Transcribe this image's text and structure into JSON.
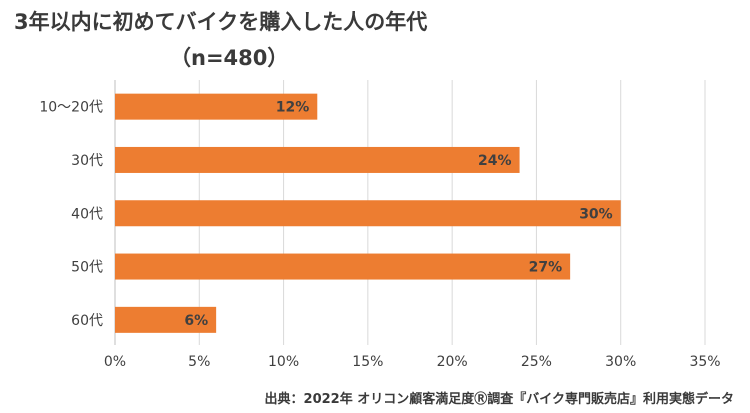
{
  "title": "3年以内に初めてバイクを購入した人の年代",
  "subtitle": "（n=480）",
  "source": "出典：2022年 オリコン顧客満足度Ⓡ調査『バイク専門販売店』利用実態データ",
  "colors": {
    "bar": "#ED7D31",
    "grid": "#D9D9D9",
    "axis": "#BFBFBF",
    "text": "#404040"
  },
  "chart_data": {
    "type": "bar",
    "orientation": "horizontal",
    "categories": [
      "10～20代",
      "30代",
      "40代",
      "50代",
      "60代"
    ],
    "values": [
      12,
      24,
      30,
      27,
      6
    ],
    "data_labels": [
      "12%",
      "24%",
      "30%",
      "27%",
      "6%"
    ],
    "xlim": [
      0,
      35
    ],
    "xticks": [
      0,
      5,
      10,
      15,
      20,
      25,
      30,
      35
    ],
    "xtick_labels": [
      "0%",
      "5%",
      "10%",
      "15%",
      "20%",
      "25%",
      "30%",
      "35%"
    ],
    "grid": true,
    "legend": "none"
  }
}
